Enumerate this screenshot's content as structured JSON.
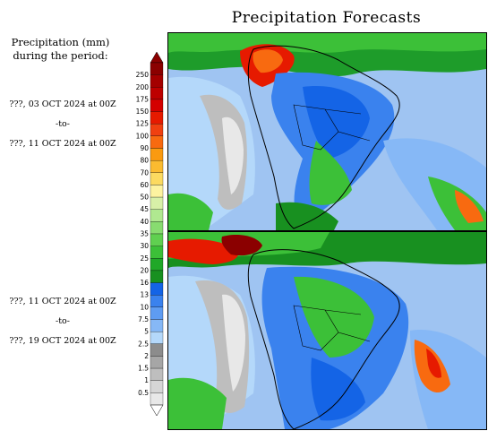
{
  "title": "Precipitation Forecasts",
  "legend": {
    "heading_line1": "Precipitation (mm)",
    "heading_line2": "during the period:",
    "ticks": [
      "250",
      "200",
      "175",
      "150",
      "125",
      "100",
      "90",
      "80",
      "70",
      "60",
      "50",
      "45",
      "40",
      "35",
      "30",
      "25",
      "20",
      "16",
      "13",
      "10",
      "7.5",
      "5",
      "2.5",
      "2",
      "1.5",
      "1",
      "0.5"
    ],
    "colors": [
      "#8b0000",
      "#a40000",
      "#bd0000",
      "#d40000",
      "#e61a00",
      "#f04010",
      "#f86a10",
      "#fa9a10",
      "#fbbb30",
      "#fcda60",
      "#fdf3a0",
      "#d8f0a8",
      "#b0e890",
      "#88dc70",
      "#60d050",
      "#3cc038",
      "#20a828",
      "#189020",
      "#1464e6",
      "#3a82ee",
      "#5e9cf2",
      "#86b8f6",
      "#b4d8fa",
      "#8c8c8c",
      "#a6a6a6",
      "#bebebe",
      "#d6d6d6",
      "#e8e8e8"
    ]
  },
  "periods": [
    {
      "from": "???, 03 OCT 2024 at 00Z",
      "sep": "-to-",
      "to": "???, 11 OCT 2024 at 00Z"
    },
    {
      "from": "???, 11 OCT 2024 at 00Z",
      "sep": "-to-",
      "to": "???, 19 OCT 2024 at 00Z"
    }
  ]
}
